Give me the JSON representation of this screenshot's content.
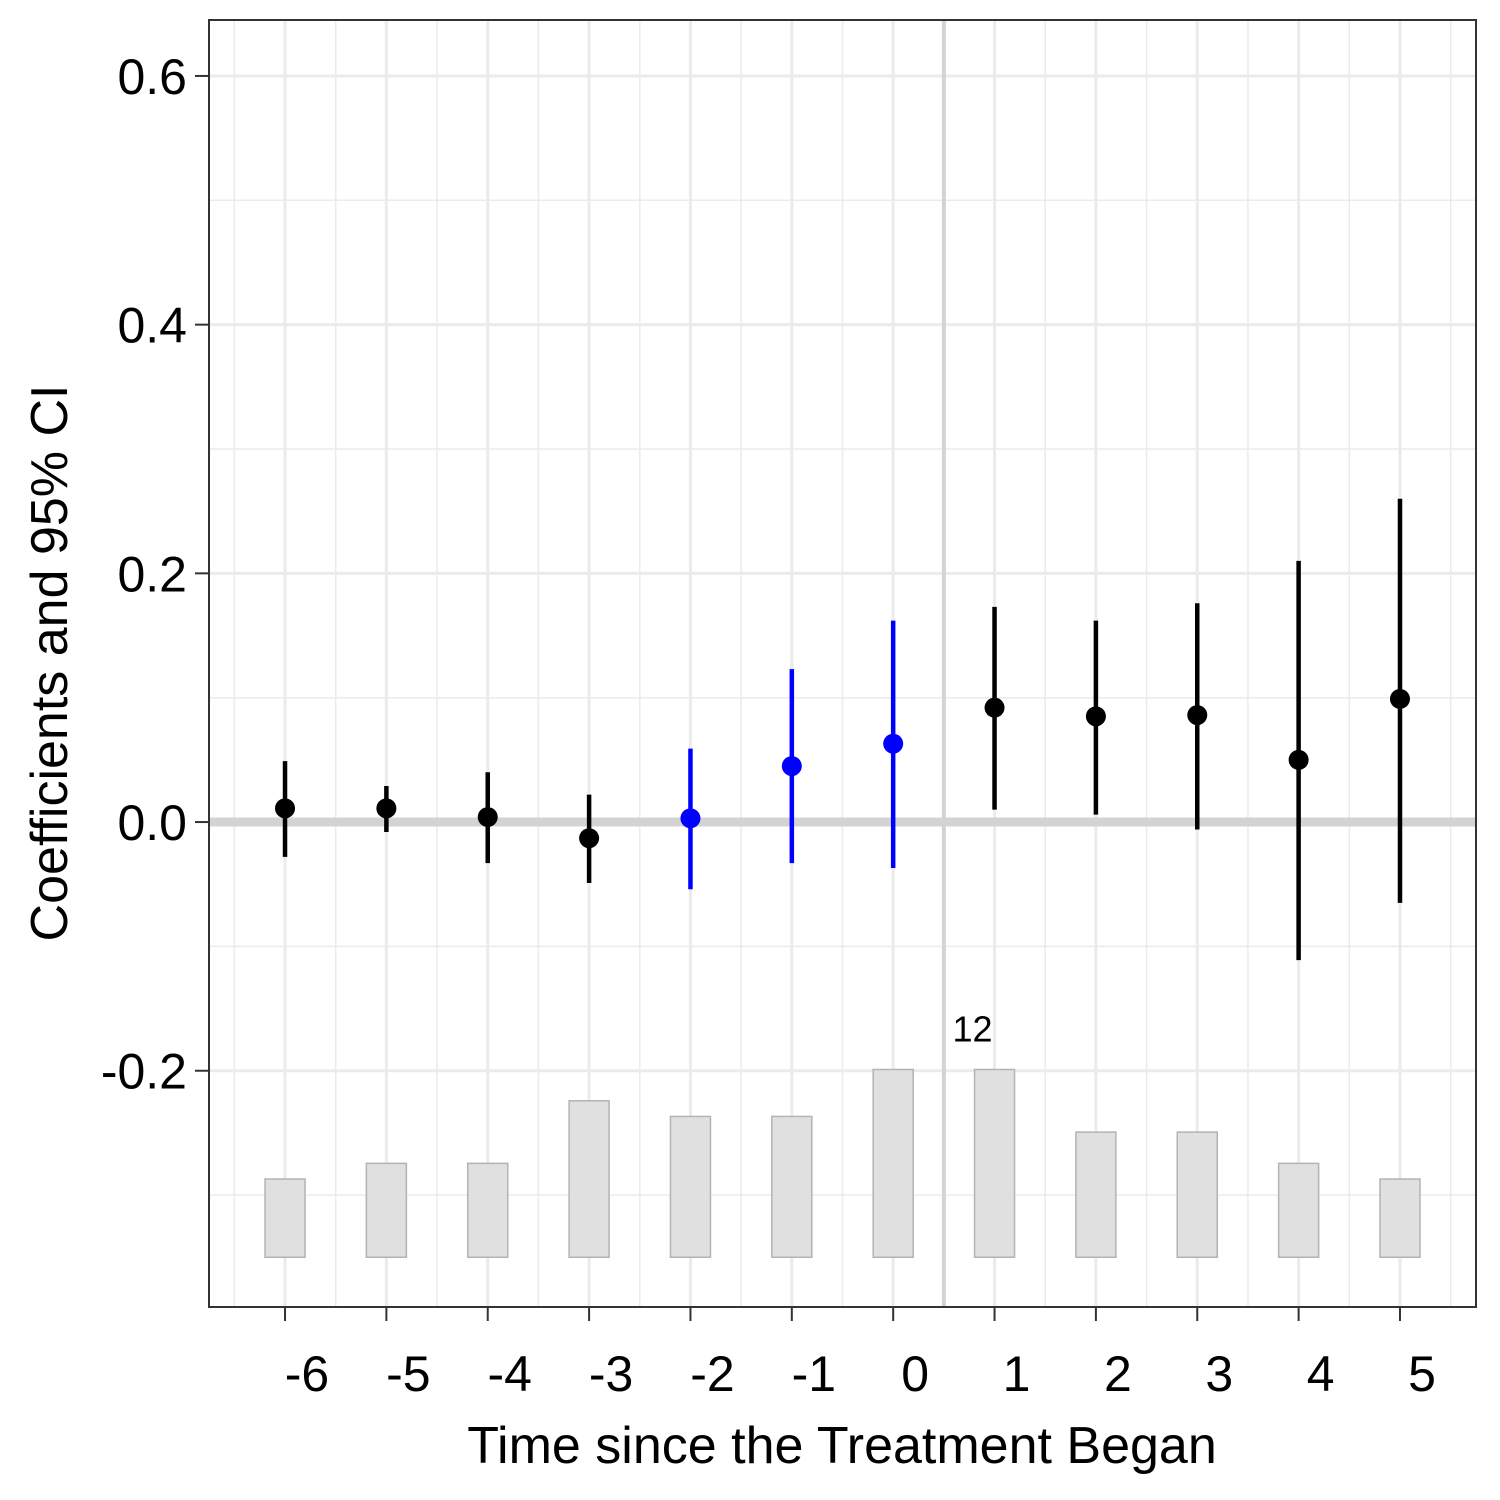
{
  "chart_data": {
    "type": "scatter",
    "xlabel": "Time since the Treatment Began",
    "ylabel": "Coefficients and 95% CI",
    "x": [
      -6,
      -5,
      -4,
      -3,
      -2,
      -1,
      0,
      1,
      2,
      3,
      4,
      5
    ],
    "x_tick_labels": [
      "-6",
      "-5",
      "-4",
      "-3",
      "-2",
      "-1",
      "0",
      "1",
      "2",
      "3",
      "4",
      "5"
    ],
    "xlim": [
      -6.75,
      5.75
    ],
    "ylim": [
      -0.39,
      0.645
    ],
    "y_ticks": [
      0.6,
      0.4,
      0.2,
      0.0,
      -0.2
    ],
    "y_tick_labels": [
      "0.6",
      "0.4",
      "0.2",
      "0.0",
      "-0.2"
    ],
    "grid": true,
    "colors": {
      "default": "#000000",
      "highlight": "#0000ff",
      "bar_fill": "#e0e0e0",
      "bar_stroke": "#b3b3b3",
      "reference_line": "#d3d3d3",
      "grid": "#ebebeb"
    },
    "series": [
      {
        "estimate": [
          0.011,
          0.011,
          0.004,
          -0.013,
          0.003,
          0.045,
          0.063,
          0.092,
          0.085,
          0.086,
          0.05,
          0.099
        ],
        "ci_lower": [
          -0.028,
          -0.008,
          -0.033,
          -0.049,
          -0.054,
          -0.033,
          -0.037,
          0.01,
          0.006,
          -0.006,
          -0.111,
          -0.065
        ],
        "ci_upper": [
          0.049,
          0.029,
          0.04,
          0.022,
          0.059,
          0.123,
          0.162,
          0.173,
          0.162,
          0.176,
          0.21,
          0.26
        ],
        "highlight": [
          false,
          false,
          false,
          false,
          true,
          true,
          true,
          false,
          false,
          false,
          false,
          false
        ]
      }
    ],
    "treated_units": {
      "values": [
        5,
        6,
        6,
        10,
        9,
        9,
        12,
        12,
        8,
        8,
        6,
        5
      ],
      "annotation": "12",
      "annotated_x": 1
    },
    "reference_lines": {
      "horizontal": 0.0,
      "vertical": 0.5
    }
  }
}
